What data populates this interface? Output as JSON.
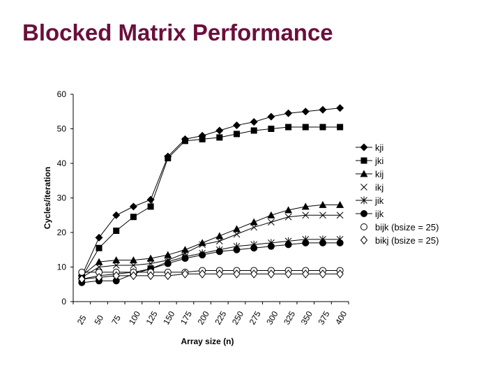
{
  "slide": {
    "title": "Blocked Matrix Performance"
  },
  "chart_data": {
    "type": "line",
    "title": "",
    "xlabel": "Array size (n)",
    "ylabel": "Cycles/iteration",
    "ylim": [
      0,
      60
    ],
    "yticks": [
      0,
      10,
      20,
      30,
      40,
      50,
      60
    ],
    "categories": [
      "25",
      "50",
      "75",
      "100",
      "125",
      "150",
      "175",
      "200",
      "225",
      "250",
      "275",
      "300",
      "325",
      "350",
      "375",
      "400"
    ],
    "legend_position": "right",
    "grid": false,
    "series": [
      {
        "name": "kji",
        "marker": "diamond-filled",
        "values": [
          7.5,
          18.5,
          25,
          27.5,
          29.5,
          42,
          47,
          48,
          49.5,
          51,
          52,
          53.5,
          54.5,
          55,
          55.5,
          56
        ]
      },
      {
        "name": "jki",
        "marker": "square-filled",
        "values": [
          7,
          15.5,
          20.5,
          24.5,
          27.5,
          41.5,
          46.5,
          47,
          47.5,
          48.5,
          49.5,
          50,
          50.5,
          50.5,
          50.5,
          50.5
        ]
      },
      {
        "name": "kij",
        "marker": "triangle-filled",
        "values": [
          7.5,
          11.5,
          12,
          12,
          12.5,
          13.5,
          15,
          17,
          19,
          21,
          23,
          25,
          26.5,
          27.5,
          28,
          28
        ]
      },
      {
        "name": "ikj",
        "marker": "x",
        "values": [
          7,
          10,
          10.5,
          10.5,
          11,
          12,
          14,
          16.5,
          17.5,
          19.5,
          21.5,
          23,
          24.5,
          25,
          25,
          25
        ]
      },
      {
        "name": "jik",
        "marker": "star",
        "values": [
          6.5,
          7.5,
          8,
          8.5,
          9.5,
          11.5,
          13,
          14,
          15,
          16,
          16.5,
          17,
          17.5,
          18,
          18,
          18
        ]
      },
      {
        "name": "ijk",
        "marker": "circle-filled",
        "values": [
          5.5,
          6,
          6,
          8,
          9.5,
          11,
          12.5,
          13.5,
          14.5,
          15,
          15.5,
          16,
          16.5,
          17,
          17,
          17
        ]
      },
      {
        "name": "bijk (bsize = 25)",
        "marker": "circle-open",
        "values": [
          8.5,
          8.5,
          8.5,
          8.5,
          8.5,
          8.5,
          8.5,
          9,
          9,
          9,
          9,
          9,
          9,
          9,
          9,
          9
        ]
      },
      {
        "name": "bikj (bsize = 25)",
        "marker": "diamond-open",
        "values": [
          6.5,
          7,
          7.5,
          7.5,
          7.5,
          7.5,
          8,
          8,
          8,
          8,
          8,
          8,
          8,
          8,
          8,
          8
        ]
      }
    ]
  }
}
